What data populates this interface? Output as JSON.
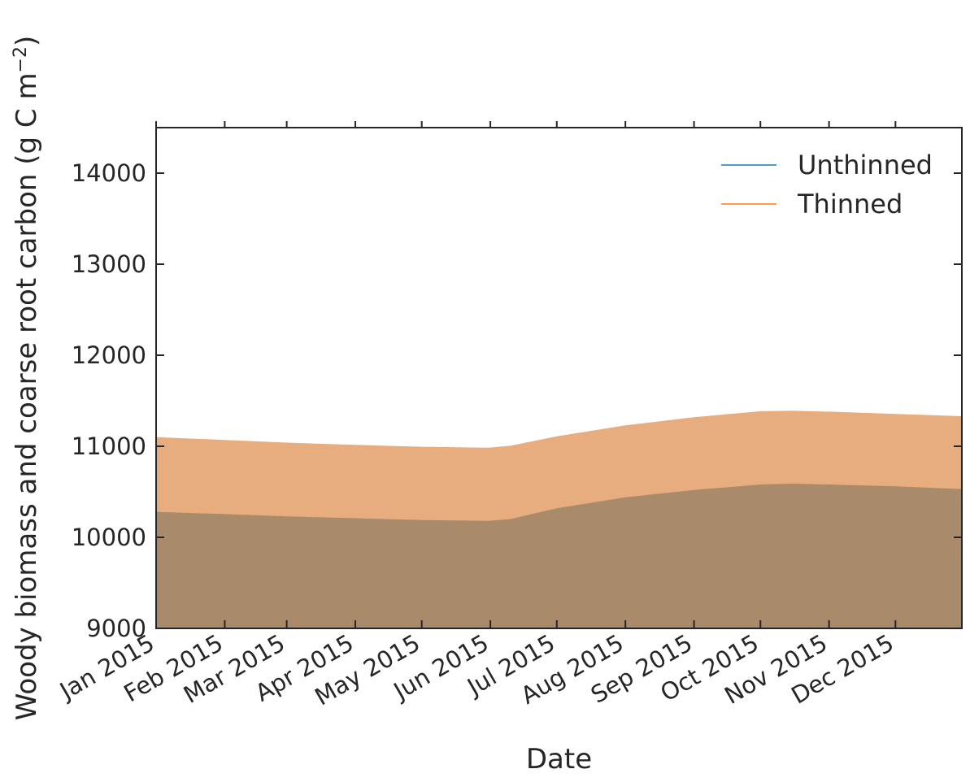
{
  "chart_data": {
    "type": "area",
    "xlabel": "Date",
    "ylabel": "Woody biomass and coarse root carbon (g C m",
    "ylabel_unit_superscript": "−2",
    "ylabel_close": ")",
    "xlim": [
      "2015-01-01",
      "2015-12-31"
    ],
    "ylim": [
      9000,
      14500
    ],
    "y_ticks": [
      9000,
      10000,
      11000,
      12000,
      13000,
      14000
    ],
    "x_ticks": [
      {
        "date": "2015-01-01",
        "label": "Jan 2015"
      },
      {
        "date": "2015-02-01",
        "label": "Feb 2015"
      },
      {
        "date": "2015-03-01",
        "label": "Mar 2015"
      },
      {
        "date": "2015-04-01",
        "label": "Apr 2015"
      },
      {
        "date": "2015-05-01",
        "label": "May 2015"
      },
      {
        "date": "2015-06-01",
        "label": "Jun 2015"
      },
      {
        "date": "2015-07-01",
        "label": "Jul 2015"
      },
      {
        "date": "2015-08-01",
        "label": "Aug 2015"
      },
      {
        "date": "2015-09-01",
        "label": "Sep 2015"
      },
      {
        "date": "2015-10-01",
        "label": "Oct 2015"
      },
      {
        "date": "2015-11-01",
        "label": "Nov 2015"
      },
      {
        "date": "2015-12-01",
        "label": "Dec 2015"
      }
    ],
    "grid": false,
    "legend_position": "top-right",
    "series": [
      {
        "name": "Unthinned",
        "color": "#1f77b4",
        "fill": "#a98a6b",
        "x": [
          "2015-01-01",
          "2015-02-01",
          "2015-03-01",
          "2015-04-01",
          "2015-05-01",
          "2015-05-31",
          "2015-06-10",
          "2015-07-01",
          "2015-08-01",
          "2015-09-01",
          "2015-10-01",
          "2015-10-15",
          "2015-11-01",
          "2015-12-01",
          "2015-12-31"
        ],
        "y": [
          10280,
          10255,
          10230,
          10210,
          10190,
          10180,
          10200,
          10320,
          10440,
          10520,
          10580,
          10590,
          10580,
          10560,
          10530
        ]
      },
      {
        "name": "Thinned",
        "color": "#ff7f0e",
        "fill": "#e8ad7e",
        "x": [
          "2015-01-01",
          "2015-02-01",
          "2015-03-01",
          "2015-04-01",
          "2015-05-01",
          "2015-05-31",
          "2015-06-10",
          "2015-07-01",
          "2015-08-01",
          "2015-09-01",
          "2015-10-01",
          "2015-10-15",
          "2015-11-01",
          "2015-12-01",
          "2015-12-31"
        ],
        "y": [
          11100,
          11070,
          11040,
          11015,
          10995,
          10985,
          11005,
          11110,
          11230,
          11320,
          11385,
          11390,
          11380,
          11355,
          11330
        ]
      }
    ]
  }
}
